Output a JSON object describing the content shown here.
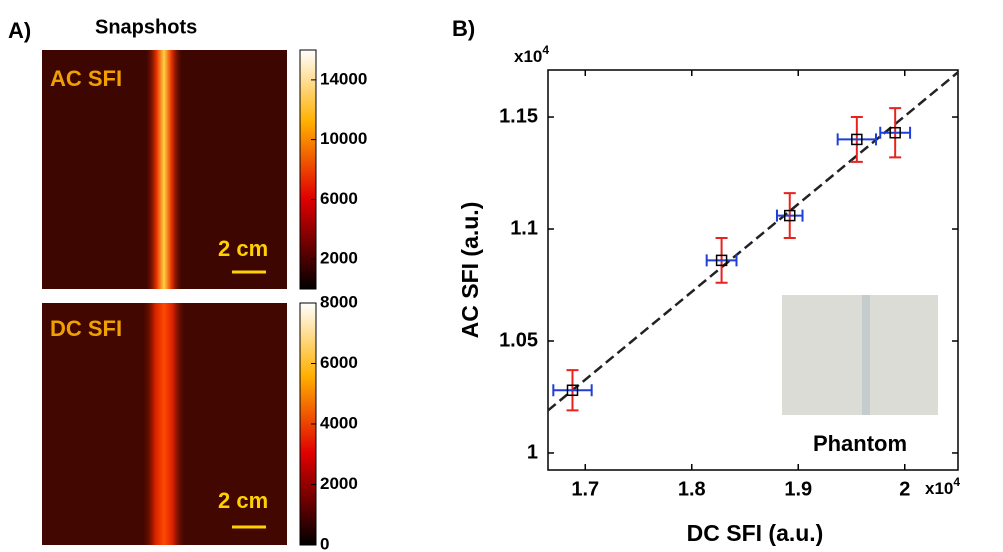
{
  "chart_data": [
    {
      "type": "heatmap",
      "panel_label": "A)",
      "title": "Snapshots",
      "label": "AC SFI",
      "scale_bar_label": "2 cm",
      "clim": [
        0,
        16000
      ],
      "cticks": [
        2000,
        6000,
        10000,
        14000
      ],
      "colormap": "hot"
    },
    {
      "type": "heatmap",
      "label": "DC SFI",
      "scale_bar_label": "2 cm",
      "clim": [
        0,
        8000
      ],
      "cticks": [
        0,
        2000,
        4000,
        6000,
        8000
      ],
      "colormap": "hot"
    },
    {
      "type": "scatter",
      "panel_label": "B)",
      "xlabel": "DC SFI (a.u.)",
      "ylabel": "AC SFI (a.u.)",
      "x_multiplier": "x10",
      "x_multiplier_exp": "4",
      "y_multiplier": "x10",
      "y_multiplier_exp": "4",
      "xlim": [
        1.665,
        2.05
      ],
      "ylim": [
        0.9924,
        1.171
      ],
      "xticks": [
        1.7,
        1.8,
        1.9,
        2
      ],
      "yticks": [
        1,
        1.05,
        1.1,
        1.15
      ],
      "series": [
        {
          "x": [
            1.688,
            1.828,
            1.892,
            1.955,
            1.991
          ],
          "values": [
            1.028,
            1.086,
            1.106,
            1.14,
            1.143
          ],
          "x_error": [
            0.018,
            0.014,
            0.012,
            0.018,
            0.014
          ],
          "y_error": [
            0.009,
            0.01,
            0.01,
            0.01,
            0.011
          ],
          "color": "#000000",
          "x_error_color": "#1f3fd8",
          "y_error_color": "#e8231f"
        }
      ],
      "fit": {
        "x": [
          1.665,
          2.05
        ],
        "values": [
          1.019,
          1.17
        ],
        "color": "#222222"
      },
      "inset_label": "Phantom"
    }
  ]
}
